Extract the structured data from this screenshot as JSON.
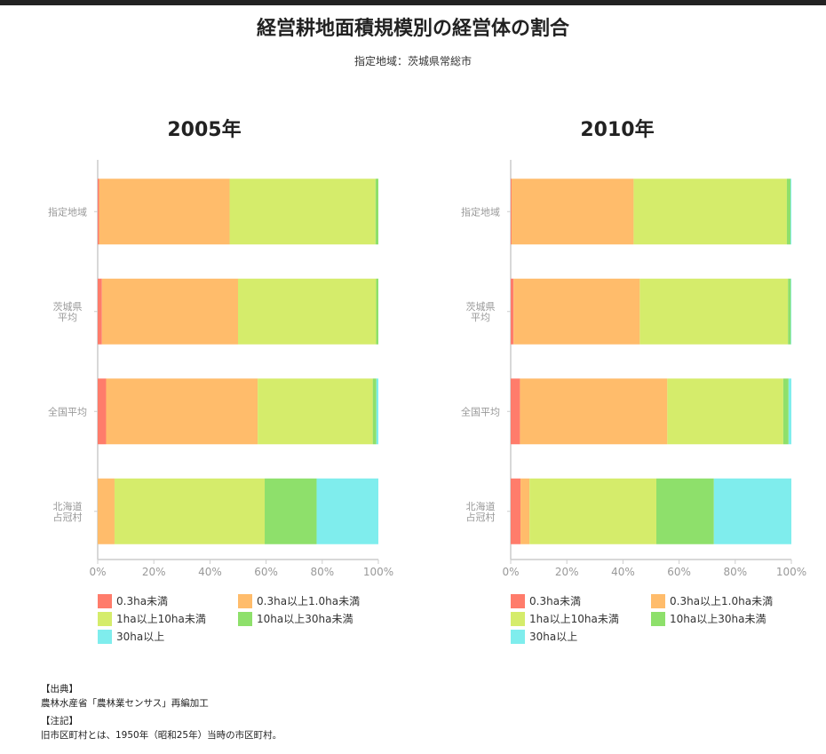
{
  "header": {
    "title": "経営耕地面積規模別の経営体の割合",
    "subtitle": "指定地域：茨城県常総市"
  },
  "legend": [
    {
      "label": "0.3ha未満",
      "color": "#ff7c6b"
    },
    {
      "label": "0.3ha以上1.0ha未満",
      "color": "#ffbc6b"
    },
    {
      "label": "1ha以上10ha未満",
      "color": "#d5ec6b"
    },
    {
      "label": "10ha以上30ha未満",
      "color": "#8ee06b"
    },
    {
      "label": "30ha以上",
      "color": "#7feded"
    }
  ],
  "chart_data": [
    {
      "type": "bar",
      "orientation": "horizontal",
      "stacked": true,
      "title": "2005年",
      "categories": [
        [
          "指定地域"
        ],
        [
          "茨城県",
          "平均"
        ],
        [
          "全国平均"
        ],
        [
          "北海道",
          "占冠村"
        ]
      ],
      "x_ticks": [
        "0%",
        "20%",
        "40%",
        "60%",
        "80%",
        "100%"
      ],
      "xlim": [
        0,
        100
      ],
      "series": [
        {
          "name": "0.3ha未満",
          "values": [
            0.5,
            1.5,
            3.0,
            0
          ]
        },
        {
          "name": "0.3ha以上1.0ha未満",
          "values": [
            46.5,
            48.5,
            54.0,
            6.0
          ]
        },
        {
          "name": "1ha以上10ha未満",
          "values": [
            52.0,
            49.2,
            41.0,
            53.5
          ]
        },
        {
          "name": "10ha以上30ha未満",
          "values": [
            1.0,
            0.8,
            1.3,
            18.5
          ]
        },
        {
          "name": "30ha以上",
          "values": [
            0,
            0,
            0.7,
            22.0
          ]
        }
      ]
    },
    {
      "type": "bar",
      "orientation": "horizontal",
      "stacked": true,
      "title": "2010年",
      "categories": [
        [
          "指定地域"
        ],
        [
          "茨城県",
          "平均"
        ],
        [
          "全国平均"
        ],
        [
          "北海道",
          "占冠村"
        ]
      ],
      "x_ticks": [
        "0%",
        "20%",
        "40%",
        "60%",
        "80%",
        "100%"
      ],
      "xlim": [
        0,
        100
      ],
      "series": [
        {
          "name": "0.3ha未満",
          "values": [
            0.3,
            1.0,
            3.3,
            3.5
          ]
        },
        {
          "name": "0.3ha以上1.0ha未満",
          "values": [
            43.5,
            45.0,
            52.5,
            3.2
          ]
        },
        {
          "name": "1ha以上10ha未満",
          "values": [
            54.6,
            52.8,
            41.3,
            45.2
          ]
        },
        {
          "name": "10ha以上30ha未満",
          "values": [
            1.3,
            1.0,
            1.9,
            20.5
          ]
        },
        {
          "name": "30ha以上",
          "values": [
            0.3,
            0.2,
            1.0,
            27.6
          ]
        }
      ]
    }
  ],
  "notes": {
    "source_heading": "【出典】",
    "source_text": "農林水産省「農林業センサス」再編加工",
    "note_heading": "【注記】",
    "note_text": "旧市区町村とは、1950年（昭和25年）当時の市区町村。"
  }
}
